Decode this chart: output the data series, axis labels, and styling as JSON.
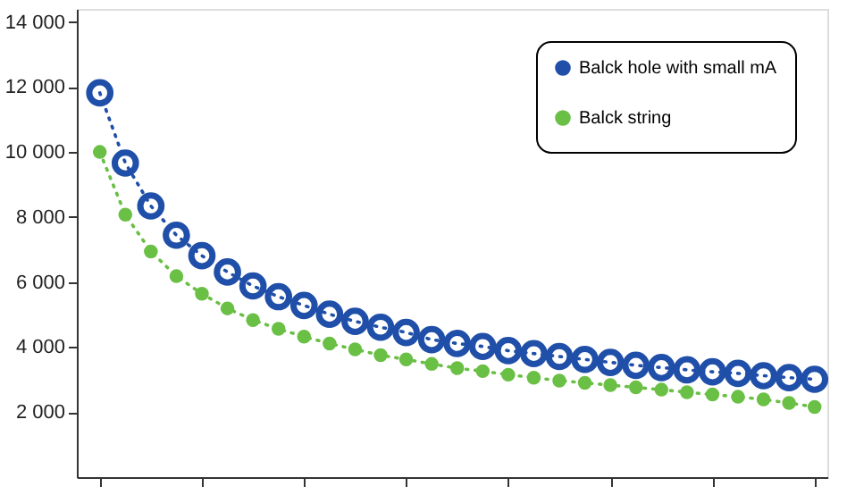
{
  "chart_data": {
    "type": "line",
    "categories": [
      null,
      null,
      null,
      null,
      null,
      null,
      null,
      null,
      null,
      null,
      null,
      null,
      null,
      null,
      null,
      null,
      null,
      null,
      null,
      null,
      null,
      null,
      null,
      null,
      null,
      null,
      null,
      null,
      null
    ],
    "series": [
      {
        "name": "Balck hole with small mA",
        "color": "#1f4fa8",
        "values": [
          11820,
          9660,
          8340,
          7440,
          6810,
          6310,
          5880,
          5550,
          5280,
          5010,
          4790,
          4610,
          4450,
          4230,
          4110,
          4020,
          3890,
          3800,
          3710,
          3620,
          3530,
          3440,
          3370,
          3300,
          3240,
          3190,
          3120,
          3060,
          3010
        ]
      },
      {
        "name": "Balck string",
        "color": "#6abf45",
        "values": [
          10000,
          8070,
          6940,
          6180,
          5640,
          5190,
          4830,
          4560,
          4320,
          4110,
          3930,
          3750,
          3620,
          3480,
          3350,
          3260,
          3150,
          3060,
          2970,
          2900,
          2830,
          2760,
          2690,
          2610,
          2540,
          2470,
          2390,
          2280,
          2160
        ]
      }
    ],
    "ylim": [
      0,
      14400
    ],
    "yticks": [
      2000,
      4000,
      6000,
      8000,
      10000,
      12000,
      14000
    ],
    "marker": "circle",
    "line_style": "dotted",
    "legend": "top right",
    "tick_labels": "y",
    "grid": false
  }
}
